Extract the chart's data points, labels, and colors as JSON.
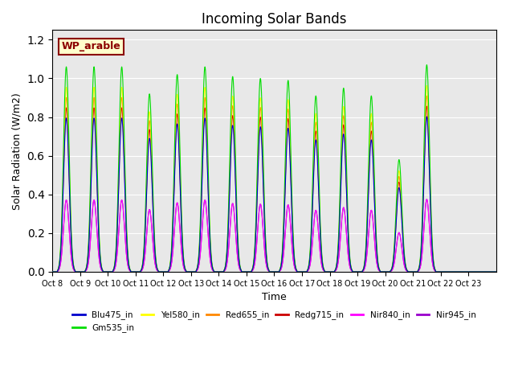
{
  "title": "Incoming Solar Bands",
  "xlabel": "Time",
  "ylabel": "Solar Radiation (W/m2)",
  "annotation": "WP_arable",
  "ylim": [
    0,
    1.25
  ],
  "background_color": "#e8e8e8",
  "series": {
    "Blu475_in": {
      "color": "#0000cc",
      "zorder": 7
    },
    "Gm535_in": {
      "color": "#00dd00",
      "zorder": 6
    },
    "Yel580_in": {
      "color": "#ffff00",
      "zorder": 5
    },
    "Red655_in": {
      "color": "#ff8800",
      "zorder": 4
    },
    "Redg715_in": {
      "color": "#cc0000",
      "zorder": 3
    },
    "Nir840_in": {
      "color": "#ff00ff",
      "zorder": 2
    },
    "Nir945_in": {
      "color": "#9900cc",
      "zorder": 1
    }
  },
  "peaks": [
    1.06,
    1.06,
    1.06,
    0.92,
    1.02,
    1.06,
    1.01,
    1.0,
    0.99,
    0.91,
    0.95,
    0.91,
    0.58,
    1.07,
    0.0
  ],
  "tick_labels": [
    "Oct 8",
    "Oct 9",
    "Oct 10",
    "Oct 11",
    "Oct 12",
    "Oct 13",
    "Oct 14",
    "Oct 15",
    "Oct 16",
    "Oct 17",
    "Oct 18",
    "Oct 19",
    "Oct 20",
    "Oct 21",
    "Oct 22",
    "Oct 23"
  ],
  "scale_factors": {
    "Blu475_in": 0.75,
    "Gm535_in": 1.0,
    "Yel580_in": 0.9,
    "Red655_in": 0.85,
    "Redg715_in": 0.8,
    "Nir840_in": 0.35,
    "Nir945_in": 0.35
  },
  "num_days": 16
}
